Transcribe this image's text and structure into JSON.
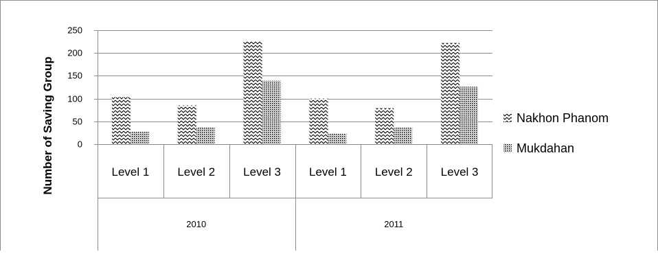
{
  "chart_data": {
    "type": "bar",
    "ylabel": "Number of Saving Group",
    "ylim": [
      0,
      250
    ],
    "yticks": [
      0,
      50,
      100,
      150,
      200,
      250
    ],
    "grid": true,
    "legend_position": "right",
    "groups": [
      {
        "label": "2010",
        "categories": [
          "Level 1",
          "Level 2",
          "Level 3"
        ]
      },
      {
        "label": "2011",
        "categories": [
          "Level 1",
          "Level 2",
          "Level 3"
        ]
      }
    ],
    "series": [
      {
        "name": "Nakhon Phanom",
        "pattern": "zigzag",
        "values": [
          103,
          85,
          225,
          100,
          79,
          222
        ]
      },
      {
        "name": "Mukdahan",
        "pattern": "dots",
        "values": [
          28,
          37,
          139,
          23,
          36,
          126
        ]
      }
    ]
  }
}
